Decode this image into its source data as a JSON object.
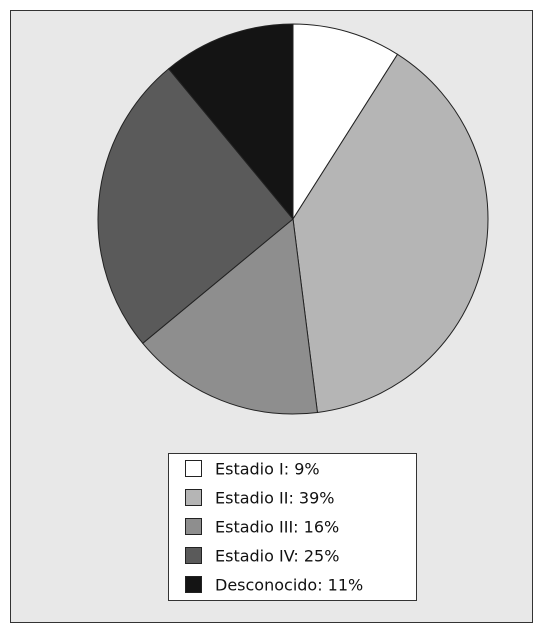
{
  "chart_data": {
    "type": "pie",
    "categories": [
      "Estadio I: 9%",
      "Estadio II: 39%",
      "Estadio III: 16%",
      "Estadio IV: 25%",
      "Desconocido: 11%"
    ],
    "values": [
      9,
      39,
      16,
      25,
      11
    ],
    "colors": [
      "#ffffff",
      "#b5b5b5",
      "#8e8e8e",
      "#5a5a5a",
      "#141414"
    ]
  }
}
